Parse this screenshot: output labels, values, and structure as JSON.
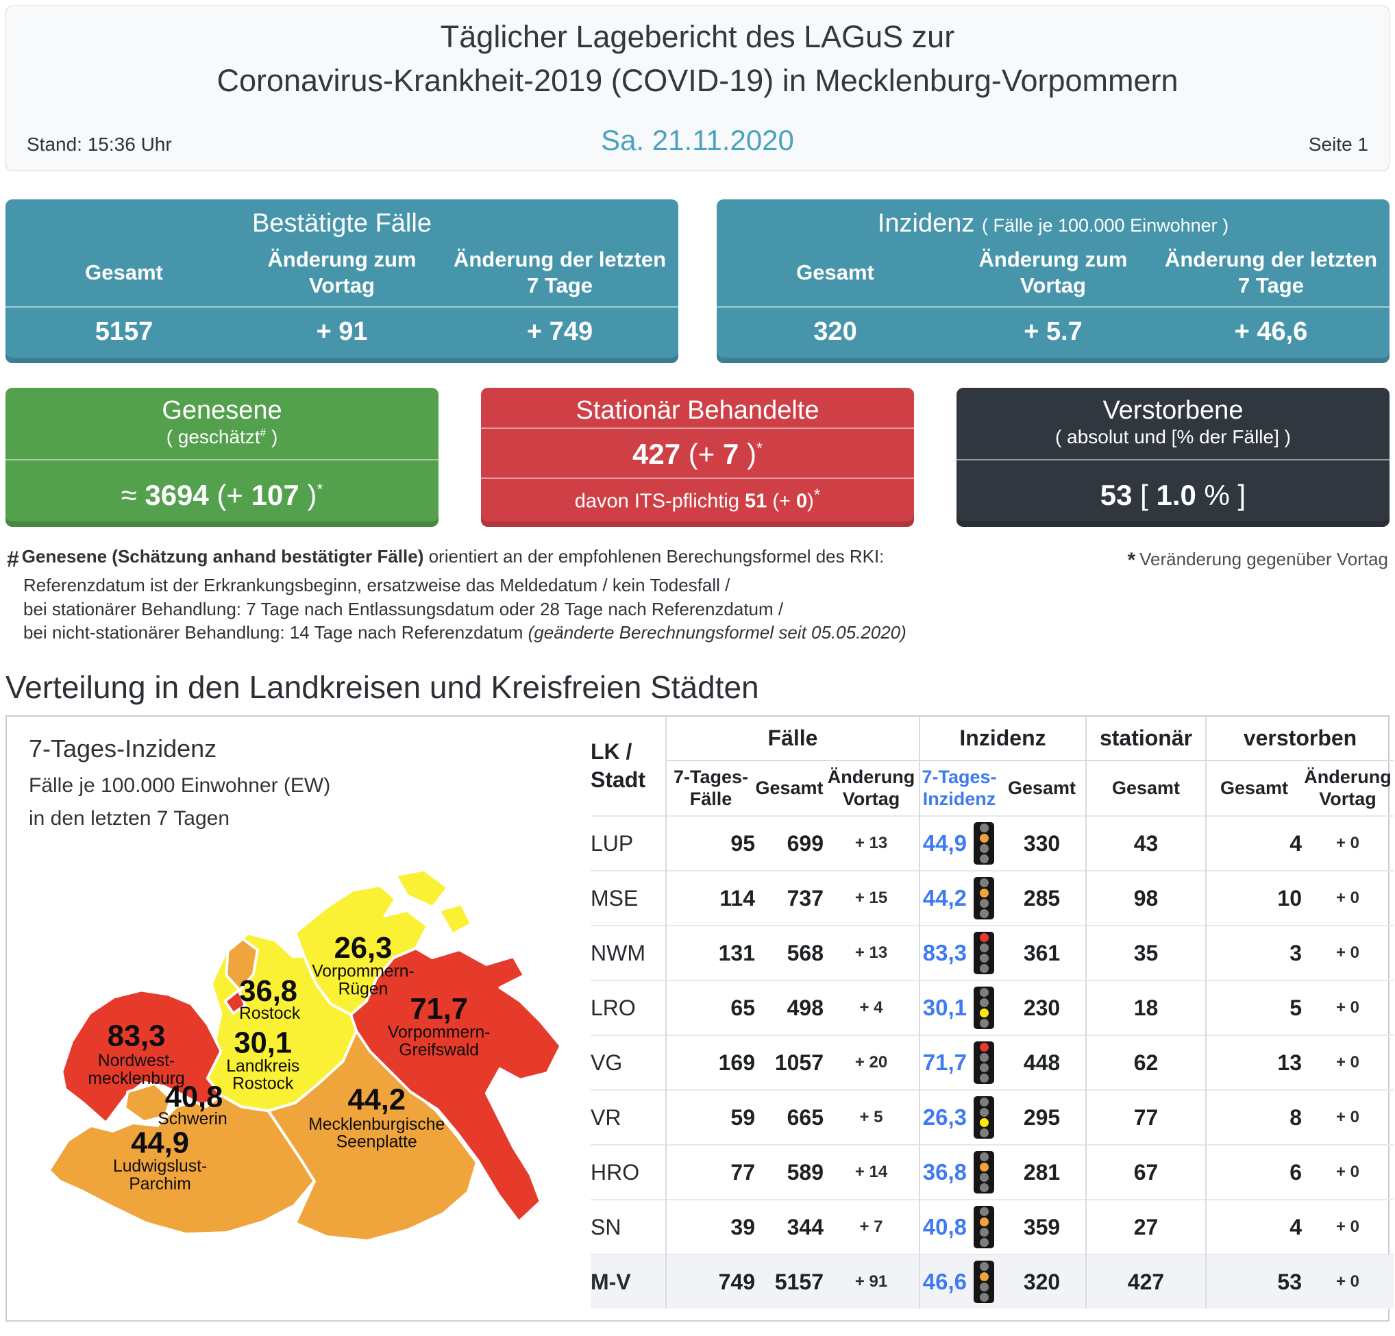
{
  "colors": {
    "teal": "#4795ab",
    "green": "#53a14c",
    "red": "#cf4046",
    "dark": "#31373f",
    "date_teal": "#4aa3be"
  },
  "header": {
    "title_line1": "Täglicher Lagebericht des LAGuS zur",
    "title_line2": "Coronavirus-Krankheit-2019 (COVID-19) in Mecklenburg-Vorpommern",
    "stand": "Stand: 15:36 Uhr",
    "date": "Sa. 21.11.2020",
    "page": "Seite 1"
  },
  "boxes": {
    "bestaetigte": {
      "title": "Bestätigte Fälle",
      "col1": "Gesamt",
      "col2": "Änderung zum Vortag",
      "col3": "Änderung der letzten 7 Tage",
      "val1": "5157",
      "val2": "+ 91",
      "val3": "+ 749"
    },
    "inzidenz": {
      "title": "Inzidenz",
      "title_note": "( Fälle je 100.000 Einwohner )",
      "col1": "Gesamt",
      "col2": "Änderung zum Vortag",
      "col3": "Änderung der letzten 7 Tage",
      "val1": "320",
      "val2": "+ 5.7",
      "val3": "+ 46,6"
    },
    "genesene": {
      "title": "Genesene",
      "subtitle_pre": "( geschätzt",
      "subtitle_sup": "#",
      "subtitle_post": " )",
      "value_a": "≈ ",
      "value_b": "3694",
      "value_c": " (+ ",
      "value_d": "107",
      "value_e": " )",
      "value_sup": "*"
    },
    "stationaer": {
      "title": "Stationär Behandelte",
      "value_a": "427",
      "value_b": " (+ ",
      "value_c": "7",
      "value_d": " )",
      "value_sup": "*",
      "its_pre": "davon ITS-pflichtig ",
      "its_val": "51",
      "its_mid": " (+ ",
      "its_val2": "0",
      "its_end": ")",
      "its_sup": "*"
    },
    "verstorbene": {
      "title": "Verstorbene",
      "subtitle": "( absolut und [% der Fälle] )",
      "value_a": "53",
      "value_b": " [ ",
      "value_c": "1.0",
      "value_d": " % ]"
    }
  },
  "footnotes": {
    "hash": "#",
    "line1_bold": "Genesene (Schätzung anhand bestätigter Fälle)",
    "line1_rest": " orientiert an der empfohlenen Berechungsformel des RKI:",
    "line2": "Referenzdatum ist der Erkrankungsbeginn, ersatzweise das Meldedatum / kein Todesfall /",
    "line3": "bei stationärer Behandlung: 7 Tage nach Entlassungsdatum oder 28 Tage nach Referenzdatum /",
    "line4_pre": "bei nicht-stationärer Behandlung: 14 Tage nach Referenzdatum ",
    "line4_italic": "(geänderte Berechnungsformel seit 05.05.2020)",
    "star": "*",
    "star_note": "Veränderung gegenüber Vortag"
  },
  "section_title": "Verteilung in den Landkreisen und Kreisfreien Städten",
  "map": {
    "title": "7-Tages-Inzidenz",
    "subtitle1": "Fälle je 100.000 Einwohner (EW)",
    "subtitle2": "in den letzten 7 Tagen",
    "legend_colors": {
      "yellow": "#fbf134",
      "orange": "#f0a43c",
      "red": "#e63a2a"
    },
    "regions": [
      {
        "id": "nordwestmecklenburg",
        "value": "83,3",
        "name1": "Nordwest-",
        "name2": "mecklenburg",
        "color": "red"
      },
      {
        "id": "rostock-stadt",
        "value": "36,8",
        "name1": "Rostock",
        "name2": "",
        "color": "orange"
      },
      {
        "id": "landkreis-rostock",
        "value": "30,1",
        "name1": "Landkreis",
        "name2": "Rostock",
        "color": "yellow"
      },
      {
        "id": "vorpommern-ruegen",
        "value": "26,3",
        "name1": "Vorpommern-",
        "name2": "Rügen",
        "color": "yellow"
      },
      {
        "id": "vorpommern-greifswald",
        "value": "71,7",
        "name1": "Vorpommern-",
        "name2": "Greifswald",
        "color": "red"
      },
      {
        "id": "mecklenburgische-seenplatte",
        "value": "44,2",
        "name1": "Mecklenburgische",
        "name2": "Seenplatte",
        "color": "orange"
      },
      {
        "id": "schwerin",
        "value": "40,8",
        "name1": "Schwerin",
        "name2": "",
        "color": "orange"
      },
      {
        "id": "ludwigslust-parchim",
        "value": "44,9",
        "name1": "Ludwigslust-",
        "name2": "Parchim",
        "color": "orange"
      }
    ]
  },
  "table": {
    "accent_blue": "#3e7bf2",
    "group_headers": {
      "lk_line1": "LK /",
      "lk_line2": "Stadt",
      "faelle": "Fälle",
      "inzidenz": "Inzidenz",
      "stationaer": "stationär",
      "verstorben": "verstorben"
    },
    "sub_headers": {
      "f7": [
        "7-Tages-",
        "Fälle"
      ],
      "gesamt": "Gesamt",
      "aenderung": [
        "Änderung",
        "Vortag"
      ],
      "inz7": [
        "7-Tages-",
        "Inzidenz"
      ],
      "inz_gesamt": "Gesamt",
      "stat_gesamt": "Gesamt",
      "verst_gesamt": "Gesamt",
      "verst_aenderung": [
        "Änderung",
        "Vortag"
      ]
    },
    "lamp_order": [
      "red",
      "orange",
      "yellow",
      "green"
    ],
    "light_colors": {
      "off": "#7e7e7e",
      "red": "#e8392b",
      "orange": "#f2a23b",
      "yellow": "#ffe90a",
      "green": "#7e7e7e"
    },
    "rows": [
      {
        "lk": "LUP",
        "f7": "95",
        "ges": "699",
        "aend": "+ 13",
        "inz7": "44,9",
        "licht": "orange",
        "inzges": "330",
        "stat": "43",
        "verst": "4",
        "vaend": "+ 0",
        "bold": false
      },
      {
        "lk": "MSE",
        "f7": "114",
        "ges": "737",
        "aend": "+ 15",
        "inz7": "44,2",
        "licht": "orange",
        "inzges": "285",
        "stat": "98",
        "verst": "10",
        "vaend": "+ 0",
        "bold": false
      },
      {
        "lk": "NWM",
        "f7": "131",
        "ges": "568",
        "aend": "+ 13",
        "inz7": "83,3",
        "licht": "red",
        "inzges": "361",
        "stat": "35",
        "verst": "3",
        "vaend": "+ 0",
        "bold": false
      },
      {
        "lk": "LRO",
        "f7": "65",
        "ges": "498",
        "aend": "+ 4",
        "inz7": "30,1",
        "licht": "yellow",
        "inzges": "230",
        "stat": "18",
        "verst": "5",
        "vaend": "+ 0",
        "bold": false
      },
      {
        "lk": "VG",
        "f7": "169",
        "ges": "1057",
        "aend": "+ 20",
        "inz7": "71,7",
        "licht": "red",
        "inzges": "448",
        "stat": "62",
        "verst": "13",
        "vaend": "+ 0",
        "bold": false
      },
      {
        "lk": "VR",
        "f7": "59",
        "ges": "665",
        "aend": "+ 5",
        "inz7": "26,3",
        "licht": "yellow",
        "inzges": "295",
        "stat": "77",
        "verst": "8",
        "vaend": "+ 0",
        "bold": false
      },
      {
        "lk": "HRO",
        "f7": "77",
        "ges": "589",
        "aend": "+ 14",
        "inz7": "36,8",
        "licht": "orange",
        "inzges": "281",
        "stat": "67",
        "verst": "6",
        "vaend": "+ 0",
        "bold": false
      },
      {
        "lk": "SN",
        "f7": "39",
        "ges": "344",
        "aend": "+ 7",
        "inz7": "40,8",
        "licht": "orange",
        "inzges": "359",
        "stat": "27",
        "verst": "4",
        "vaend": "+ 0",
        "bold": false
      },
      {
        "lk": "M-V",
        "f7": "749",
        "ges": "5157",
        "aend": "+ 91",
        "inz7": "46,6",
        "licht": "orange",
        "inzges": "320",
        "stat": "427",
        "verst": "53",
        "vaend": "+ 0",
        "bold": true
      }
    ]
  }
}
